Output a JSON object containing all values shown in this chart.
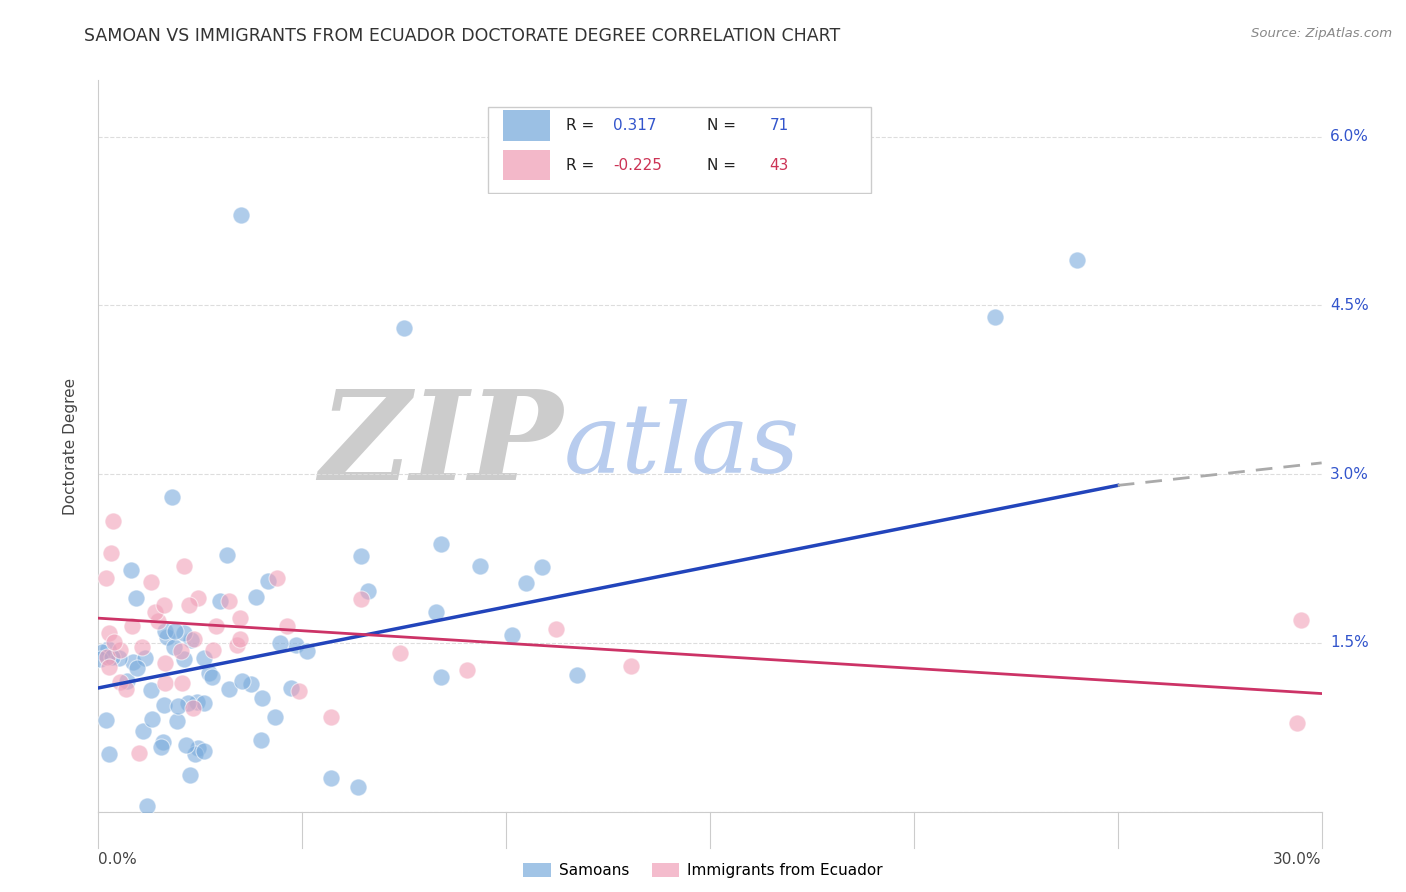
{
  "title": "SAMOAN VS IMMIGRANTS FROM ECUADOR DOCTORATE DEGREE CORRELATION CHART",
  "source": "Source: ZipAtlas.com",
  "ylabel": "Doctorate Degree",
  "xmin": 0.0,
  "xmax": 30.0,
  "ymin": 0.0,
  "ymax": 6.5,
  "ytick_vals": [
    0.0,
    1.5,
    3.0,
    4.5,
    6.0
  ],
  "ytick_labels": [
    "",
    "1.5%",
    "3.0%",
    "4.5%",
    "6.0%"
  ],
  "samoans_color": "#7aabdc",
  "ecuador_color": "#f0a0b8",
  "regression_blue_color": "#2244bb",
  "regression_pink_color": "#cc3366",
  "regression_dash_color": "#aaaaaa",
  "watermark_zip_color": "#cccccc",
  "watermark_atlas_color": "#b8ccee",
  "background_color": "#ffffff",
  "grid_color": "#dddddd",
  "legend_value_color_blue": "#3355cc",
  "legend_value_color_pink": "#3355cc",
  "legend_N_color": "#3355cc",
  "right_label_color": "#3355cc",
  "title_color": "#333333",
  "source_color": "#888888"
}
